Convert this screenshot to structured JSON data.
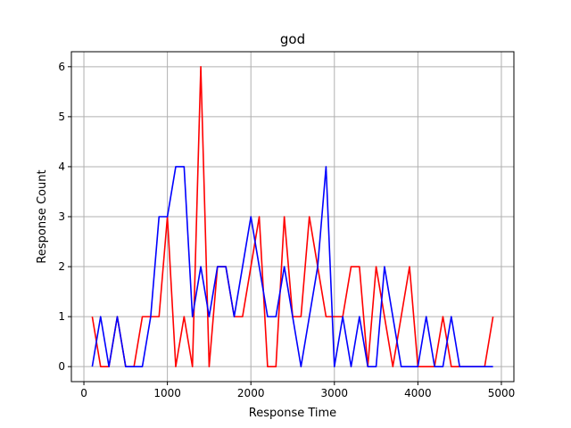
{
  "chart_data": {
    "type": "line",
    "title": "god",
    "xlabel": "Response Time",
    "ylabel": "Response Count",
    "xlim": [
      -150,
      5150
    ],
    "ylim": [
      -0.3,
      6.3
    ],
    "xticks": [
      0,
      1000,
      2000,
      3000,
      4000,
      5000
    ],
    "xtick_labels": [
      "0",
      "1000",
      "2000",
      "3000",
      "4000",
      "5000"
    ],
    "yticks": [
      0,
      1,
      2,
      3,
      4,
      5,
      6
    ],
    "ytick_labels": [
      "0",
      "1",
      "2",
      "3",
      "4",
      "5",
      "6"
    ],
    "grid": true,
    "legend": "none",
    "x": [
      100,
      200,
      300,
      400,
      500,
      600,
      700,
      800,
      900,
      1000,
      1100,
      1200,
      1300,
      1400,
      1500,
      1600,
      1700,
      1800,
      1900,
      2000,
      2100,
      2200,
      2300,
      2400,
      2500,
      2600,
      2700,
      2800,
      2900,
      3000,
      3100,
      3200,
      3300,
      3400,
      3500,
      3600,
      3700,
      3800,
      3900,
      4000,
      4100,
      4200,
      4300,
      4400,
      4500,
      4600,
      4700,
      4800,
      4900
    ],
    "series": [
      {
        "color": "#ff0000",
        "values": [
          1,
          0,
          0,
          1,
          0,
          0,
          1,
          1,
          1,
          3,
          0,
          1,
          0,
          6,
          0,
          2,
          2,
          1,
          1,
          2,
          3,
          0,
          0,
          3,
          1,
          1,
          3,
          2,
          1,
          1,
          1,
          2,
          2,
          0,
          2,
          1,
          0,
          1,
          2,
          0,
          0,
          0,
          1,
          0,
          0,
          0,
          0,
          0,
          1
        ]
      },
      {
        "color": "#0000ff",
        "values": [
          0,
          1,
          0,
          1,
          0,
          0,
          0,
          1,
          3,
          3,
          4,
          4,
          1,
          2,
          1,
          2,
          2,
          1,
          2,
          3,
          2,
          1,
          1,
          2,
          1,
          0,
          1,
          2,
          4,
          0,
          1,
          0,
          1,
          0,
          0,
          2,
          1,
          0,
          0,
          0,
          1,
          0,
          0,
          1,
          0,
          0,
          0,
          0,
          0
        ]
      }
    ]
  }
}
